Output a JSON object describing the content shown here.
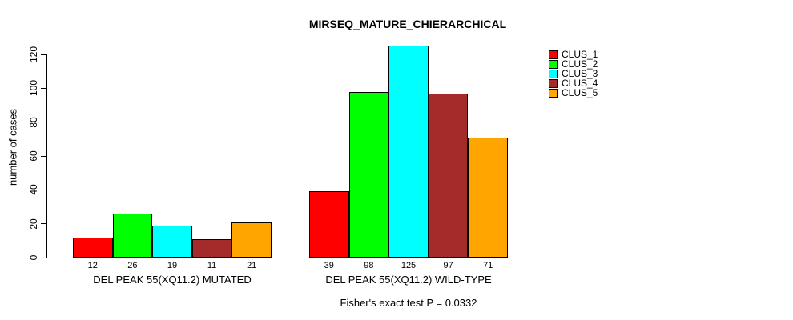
{
  "chart_data": {
    "type": "bar",
    "title": "MIRSEQ_MATURE_CHIERARCHICAL",
    "ylabel": "number of cases",
    "xlabel": "",
    "ylim": [
      0,
      130
    ],
    "yticks": [
      0,
      20,
      40,
      60,
      80,
      100,
      120
    ],
    "grid": false,
    "legend_position": "top-right-outside",
    "categories": [
      "DEL PEAK 55(XQ11.2) MUTATED",
      "DEL PEAK 55(XQ11.2) WILD-TYPE"
    ],
    "series": [
      {
        "name": "CLUS_1",
        "color": "#FF0000",
        "values": [
          12,
          39
        ]
      },
      {
        "name": "CLUS_2",
        "color": "#00FF00",
        "values": [
          26,
          98
        ]
      },
      {
        "name": "CLUS_3",
        "color": "#00FFFF",
        "values": [
          19,
          125
        ]
      },
      {
        "name": "CLUS_4",
        "color": "#A52A2A",
        "values": [
          11,
          97
        ]
      },
      {
        "name": "CLUS_5",
        "color": "#FFA500",
        "values": [
          21,
          71
        ]
      }
    ],
    "bar_value_labels": [
      [
        12,
        26,
        19,
        11,
        21
      ],
      [
        39,
        98,
        125,
        97,
        71
      ]
    ],
    "footnote": "Fisher's exact test P = 0.0332"
  }
}
